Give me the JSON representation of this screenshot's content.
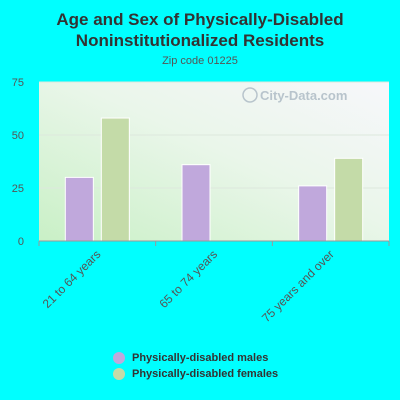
{
  "chart_data": {
    "type": "bar",
    "title_line1": "Age and Sex of Physically-Disabled",
    "title_line2": "Noninstitutionalized Residents",
    "subtitle": "Zip code 01225",
    "watermark": "City-Data.com",
    "categories": [
      "21 to 64 years",
      "65 to 74 years",
      "75 years and over"
    ],
    "series": [
      {
        "name": "Physically-disabled males",
        "color": "#c0a8dc",
        "values": [
          30,
          36,
          26
        ]
      },
      {
        "name": "Physically-disabled females",
        "color": "#c4dba8",
        "values": [
          58,
          0,
          39
        ]
      }
    ],
    "ylim": [
      0,
      75
    ],
    "yticks": [
      0,
      25,
      50,
      75
    ],
    "grid": true,
    "legend_position": "bottom"
  }
}
